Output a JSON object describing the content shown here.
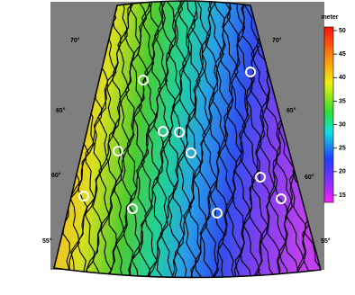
{
  "colorbar": {
    "title": "meter",
    "ticks": [
      50,
      45,
      40,
      35,
      30,
      25,
      20,
      15
    ]
  },
  "latitude_labels": {
    "left": [
      "70°",
      "65°",
      "60°",
      "55°"
    ],
    "right": [
      "70°",
      "65°",
      "60°",
      "55°"
    ]
  }
}
